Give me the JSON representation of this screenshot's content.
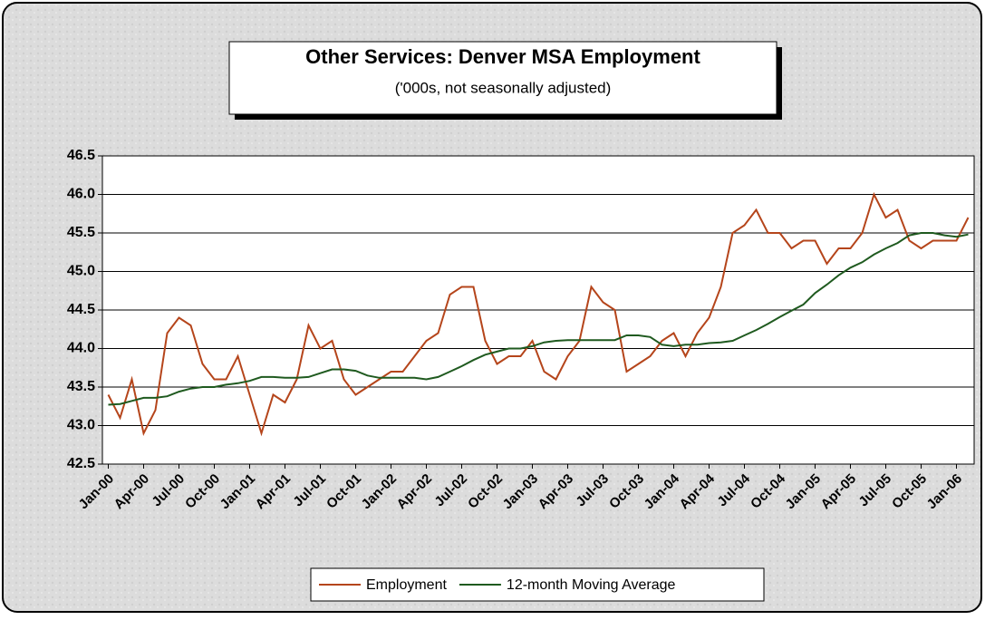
{
  "chart_data": {
    "type": "line",
    "title": "Other Services: Denver MSA Employment",
    "subtitle": "('000s, not seasonally adjusted)",
    "categories": [
      "Jan-00",
      null,
      null,
      "Apr-00",
      null,
      null,
      "Jul-00",
      null,
      null,
      "Oct-00",
      null,
      null,
      "Jan-01",
      null,
      null,
      "Apr-01",
      null,
      null,
      "Jul-01",
      null,
      null,
      "Oct-01",
      null,
      null,
      "Jan-02",
      null,
      null,
      "Apr-02",
      null,
      null,
      "Jul-02",
      null,
      null,
      "Oct-02",
      null,
      null,
      "Jan-03",
      null,
      null,
      "Apr-03",
      null,
      null,
      "Jul-03",
      null,
      null,
      "Oct-03",
      null,
      null,
      "Jan-04",
      null,
      null,
      "Apr-04",
      null,
      null,
      "Jul-04",
      null,
      null,
      "Oct-04",
      null,
      null,
      "Jan-05",
      null,
      null,
      "Apr-05",
      null,
      null,
      "Jul-05",
      null,
      null,
      "Oct-05",
      null,
      null,
      "Jan-06",
      null
    ],
    "series": [
      {
        "name": "Employment",
        "color": "#b5451b",
        "values": [
          43.4,
          43.1,
          43.6,
          42.9,
          43.2,
          44.2,
          44.4,
          44.3,
          43.8,
          43.6,
          43.6,
          43.9,
          43.4,
          42.9,
          43.4,
          43.3,
          43.6,
          44.3,
          44.0,
          44.1,
          43.6,
          43.4,
          43.5,
          43.6,
          43.7,
          43.7,
          43.9,
          44.1,
          44.2,
          44.7,
          44.8,
          44.8,
          44.1,
          43.8,
          43.9,
          43.9,
          44.1,
          43.7,
          43.6,
          43.9,
          44.1,
          44.8,
          44.6,
          44.5,
          43.7,
          43.8,
          43.9,
          44.1,
          44.2,
          43.9,
          44.2,
          44.4,
          44.8,
          45.5,
          45.6,
          45.8,
          45.5,
          45.5,
          45.3,
          45.4,
          45.4,
          45.1,
          45.3,
          45.3,
          45.5,
          46.0,
          45.7,
          45.8,
          45.4,
          45.3,
          45.4,
          45.4,
          45.4,
          45.7
        ]
      },
      {
        "name": "12-month Moving Average",
        "color": "#1f5a1f",
        "values": [
          43.27,
          43.28,
          43.32,
          43.36,
          43.36,
          43.38,
          43.44,
          43.48,
          43.5,
          43.5,
          43.53,
          43.55,
          43.58,
          43.63,
          43.63,
          43.62,
          43.62,
          43.63,
          43.68,
          43.73,
          43.73,
          43.71,
          43.65,
          43.62,
          43.62,
          43.62,
          43.62,
          43.6,
          43.63,
          43.7,
          43.77,
          43.85,
          43.92,
          43.96,
          44.0,
          44.0,
          44.03,
          44.08,
          44.1,
          44.11,
          44.11,
          44.11,
          44.11,
          44.11,
          44.17,
          44.17,
          44.15,
          44.05,
          44.03,
          44.05,
          44.05,
          44.07,
          44.08,
          44.1,
          44.17,
          44.24,
          44.32,
          44.41,
          44.49,
          44.57,
          44.72,
          44.83,
          44.95,
          45.05,
          45.12,
          45.22,
          45.3,
          45.37,
          45.47,
          45.5,
          45.5,
          45.47,
          45.45,
          45.48
        ]
      }
    ],
    "ylim": [
      42.5,
      46.5
    ],
    "yticks": [
      42.5,
      {
        "value": 43,
        "label": "43.0"
      },
      43.5,
      {
        "value": 44,
        "label": "44.0"
      },
      44.5,
      {
        "value": 45,
        "label": "45.0"
      },
      45.5,
      {
        "value": 46,
        "label": "46.0"
      },
      46.5
    ],
    "grid": true,
    "legend": "bottom"
  }
}
